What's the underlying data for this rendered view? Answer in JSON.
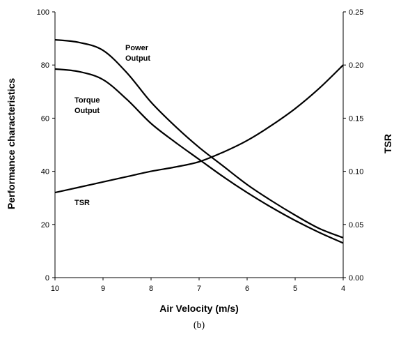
{
  "chart_data": {
    "type": "line",
    "xlabel": "Air Velocity (m/s)",
    "ylabel": "Performance characteristics",
    "y2label": "TSR",
    "caption": "(b)",
    "x_reversed": true,
    "xlim": [
      10,
      4
    ],
    "ylim": [
      0,
      100
    ],
    "y2lim": [
      0,
      0.25
    ],
    "x_ticks": [
      "10",
      "9",
      "8",
      "7",
      "6",
      "5",
      "4"
    ],
    "y_ticks": [
      "0",
      "20",
      "40",
      "60",
      "80",
      "100"
    ],
    "y2_ticks": [
      "0.00",
      "0.05",
      "0.10",
      "0.15",
      "0.20",
      "0.25"
    ],
    "grid": false,
    "line_color": "#000000",
    "series": [
      {
        "name": "Power Output",
        "label": "Power\nOutput",
        "axis": "left",
        "x": [
          10,
          9.5,
          9,
          8.5,
          8,
          7.5,
          7,
          6.5,
          6,
          5.5,
          5,
          4.5,
          4
        ],
        "y": [
          89.5,
          88.5,
          85.5,
          77,
          66,
          57,
          49,
          42,
          35,
          29,
          23.5,
          18.5,
          15
        ]
      },
      {
        "name": "Torque Output",
        "label": "Torque\nOutput",
        "axis": "left",
        "x": [
          10,
          9.5,
          9,
          8.5,
          8,
          7.5,
          7,
          6.5,
          6,
          5.5,
          5,
          4.5,
          4
        ],
        "y": [
          78.5,
          77.5,
          74.5,
          67,
          58,
          51,
          44.5,
          38,
          32,
          26.5,
          21.5,
          17,
          13
        ]
      },
      {
        "name": "TSR",
        "label": "TSR",
        "axis": "right",
        "x": [
          10,
          9.5,
          9,
          8.5,
          8,
          7.5,
          7,
          6.5,
          6,
          5.5,
          5,
          4.5,
          4
        ],
        "y": [
          0.08,
          0.085,
          0.09,
          0.095,
          0.1,
          0.104,
          0.109,
          0.118,
          0.129,
          0.143,
          0.159,
          0.178,
          0.2
        ]
      }
    ]
  }
}
